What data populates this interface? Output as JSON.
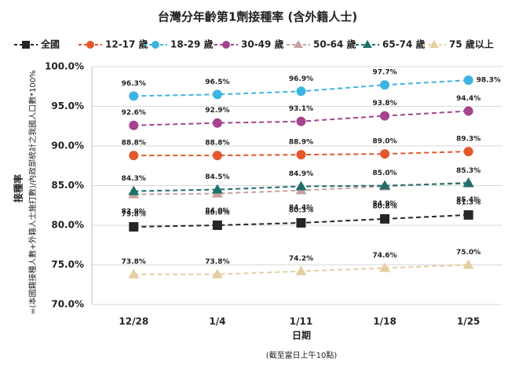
{
  "chart_data": {
    "type": "line",
    "title": "台灣分年齡第1劑接種率 (含外籍人士)",
    "y_label": "接種率",
    "y_sublabel": "=(本國籍接種人數+外籍人士施打數)/內政部統計之我國人口數*100%",
    "x_label": "日期",
    "note": "(截至當日上午10點)",
    "categories": [
      "12/28",
      "1/4",
      "1/11",
      "1/18",
      "1/25"
    ],
    "ylim": [
      70,
      100
    ],
    "yticks": [
      {
        "value": 70,
        "label": "70.0%"
      },
      {
        "value": 75,
        "label": "75.0%"
      },
      {
        "value": 80,
        "label": "80.0%"
      },
      {
        "value": 85,
        "label": "85.0%"
      },
      {
        "value": 90,
        "label": "90.0%"
      },
      {
        "value": 95,
        "label": "95.0%"
      },
      {
        "value": 100,
        "label": "100.0%"
      }
    ],
    "grid": true,
    "series": [
      {
        "name": "全國",
        "color": "#262626",
        "marker": "square",
        "values": [
          79.8,
          80.0,
          80.3,
          80.8,
          81.3
        ],
        "value_labels": [
          "79.8%",
          "80.0%",
          "80.3%",
          "80.8%",
          "81.3%"
        ]
      },
      {
        "name": "12-17 歲",
        "color": "#e2582c",
        "marker": "circle",
        "values": [
          88.8,
          88.8,
          88.9,
          89.0,
          89.3
        ],
        "value_labels": [
          "88.8%",
          "88.8%",
          "88.9%",
          "89.0%",
          "89.3%"
        ]
      },
      {
        "name": "18-29 歲",
        "color": "#3db4e2",
        "marker": "circle",
        "values": [
          96.3,
          96.5,
          96.9,
          97.7,
          98.3
        ],
        "value_labels": [
          "96.3%",
          "96.5%",
          "96.9%",
          "97.7%",
          "98.3%"
        ]
      },
      {
        "name": "30-49 歲",
        "color": "#a3448f",
        "marker": "circle",
        "values": [
          92.6,
          92.9,
          93.1,
          93.8,
          94.4
        ],
        "value_labels": [
          "92.6%",
          "92.9%",
          "93.1%",
          "93.8%",
          "94.4%"
        ]
      },
      {
        "name": "50-64 歲",
        "color": "#c9a19f",
        "marker": "triangle",
        "values": [
          83.9,
          84.0,
          84.4,
          84.9,
          85.4
        ],
        "value_labels": [
          "83.9%",
          "84.0%",
          "84.4%",
          "84.9%",
          "85.4%"
        ]
      },
      {
        "name": "65-74 歲",
        "color": "#1f6f6c",
        "marker": "triangle",
        "values": [
          84.3,
          84.5,
          84.9,
          85.0,
          85.3
        ],
        "value_labels": [
          "84.3%",
          "84.5%",
          "84.9%",
          "85.0%",
          "85.3%"
        ]
      },
      {
        "name": "75 歲以上",
        "color": "#e3cfa2",
        "marker": "triangle",
        "values": [
          73.8,
          73.8,
          74.2,
          74.6,
          75.0
        ],
        "value_labels": [
          "73.8%",
          "73.8%",
          "74.2%",
          "74.6%",
          "75.0%"
        ]
      }
    ]
  }
}
